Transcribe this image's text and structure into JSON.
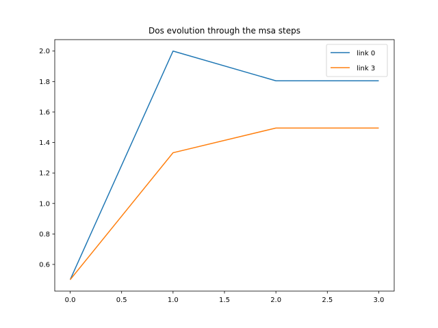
{
  "chart_data": {
    "type": "line",
    "title": "Dos evolution through the msa steps",
    "xlabel": "",
    "ylabel": "",
    "x": [
      0,
      1,
      2,
      3
    ],
    "xlim": [
      -0.15,
      3.15
    ],
    "ylim": [
      0.425,
      2.075
    ],
    "xticks": [
      0.0,
      0.5,
      1.0,
      1.5,
      2.0,
      2.5,
      3.0
    ],
    "xtick_labels": [
      "0.0",
      "0.5",
      "1.0",
      "1.5",
      "2.0",
      "2.5",
      "3.0"
    ],
    "yticks": [
      0.6,
      0.8,
      1.0,
      1.2,
      1.4,
      1.6,
      1.8,
      2.0
    ],
    "ytick_labels": [
      "0.6",
      "0.8",
      "1.0",
      "1.2",
      "1.4",
      "1.6",
      "1.8",
      "2.0"
    ],
    "grid": false,
    "legend_position": "top-right",
    "series": [
      {
        "name": "link 0",
        "values": [
          0.5,
          2.0,
          1.805,
          1.805
        ],
        "color": "#1f77b4"
      },
      {
        "name": "link 3",
        "values": [
          0.5,
          1.333,
          1.495,
          1.495
        ],
        "color": "#ff7f0e"
      }
    ]
  }
}
